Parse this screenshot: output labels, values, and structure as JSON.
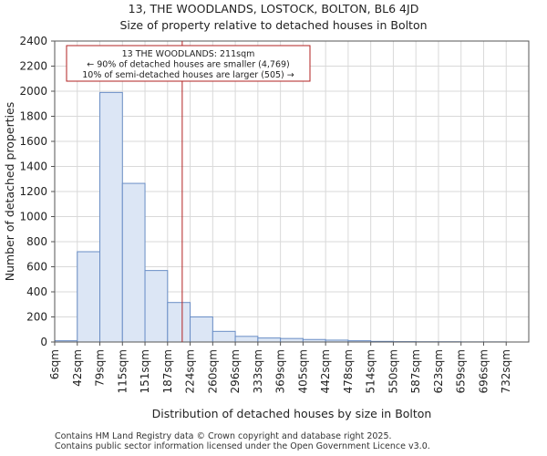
{
  "chart_data": {
    "type": "bar",
    "title": "13, THE WOODLANDS, LOSTOCK, BOLTON, BL6 4JD",
    "subtitle": "Size of property relative to detached houses in Bolton",
    "xlabel": "Distribution of detached houses by size in Bolton",
    "ylabel": "Number of detached properties",
    "categories": [
      "6sqm",
      "42sqm",
      "79sqm",
      "115sqm",
      "151sqm",
      "187sqm",
      "224sqm",
      "260sqm",
      "296sqm",
      "333sqm",
      "369sqm",
      "405sqm",
      "442sqm",
      "478sqm",
      "514sqm",
      "550sqm",
      "587sqm",
      "623sqm",
      "659sqm",
      "696sqm",
      "732sqm"
    ],
    "values": [
      10,
      720,
      1990,
      1265,
      570,
      315,
      200,
      85,
      45,
      32,
      28,
      20,
      15,
      10,
      5,
      3,
      2,
      2,
      1,
      1,
      0
    ],
    "ylim": [
      0,
      2400
    ],
    "yticks": [
      0,
      200,
      400,
      600,
      800,
      1000,
      1200,
      1400,
      1600,
      1800,
      2000,
      2200,
      2400
    ],
    "grid": true,
    "bar_color": "#dce6f5",
    "bar_edge_color": "#6a8ec6",
    "marker": {
      "x_value_sqm": 211,
      "color": "#b22222"
    },
    "annotation": {
      "lines": [
        "13 THE WOODLANDS: 211sqm",
        "← 90% of detached houses are smaller (4,769)",
        "10% of semi-detached houses are larger (505) →"
      ],
      "border_color": "#b22222"
    }
  },
  "footer": {
    "line1": "Contains HM Land Registry data © Crown copyright and database right 2025.",
    "line2": "Contains public sector information licensed under the Open Government Licence v3.0."
  }
}
